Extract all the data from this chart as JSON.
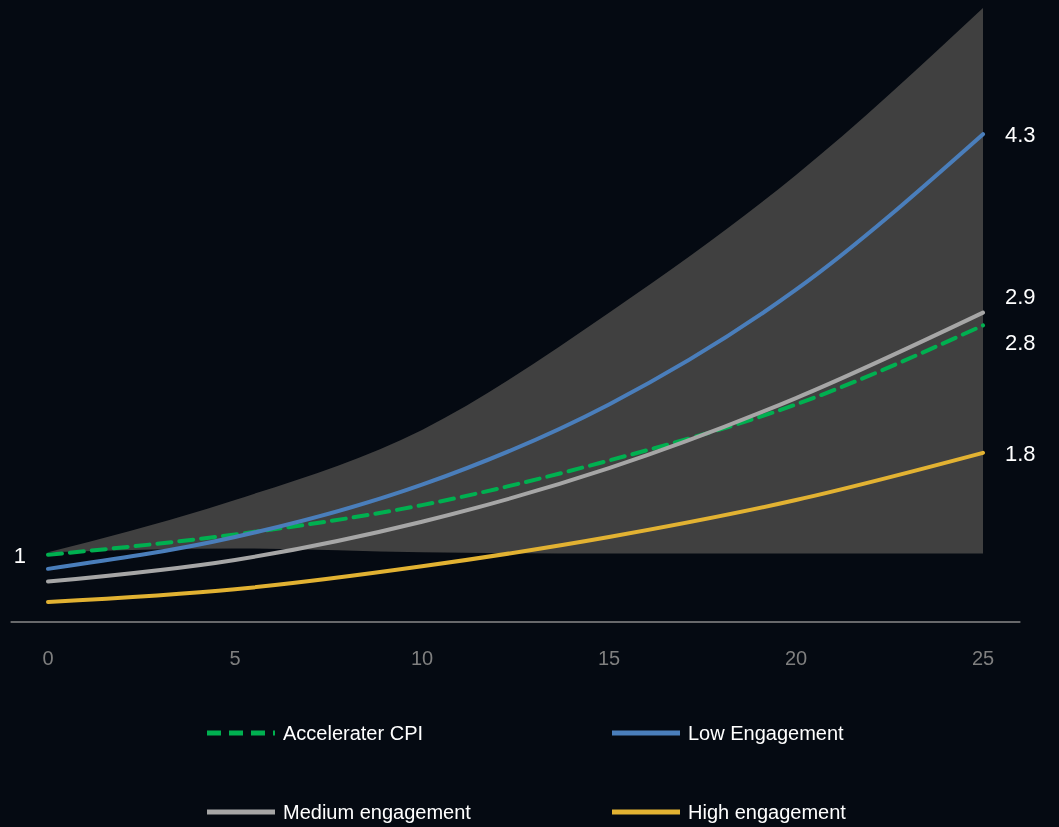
{
  "chart_data": {
    "type": "line",
    "x": [
      0,
      5,
      10,
      15,
      20,
      25
    ],
    "xlim": [
      -1,
      26
    ],
    "xticks": [
      0,
      5,
      10,
      15,
      20,
      25
    ],
    "tick_labels": "x",
    "legend": "bottom",
    "series": [
      {
        "name": "Accelerater CPI",
        "color": "#00b050",
        "line_style": "dashed",
        "values": [
          1,
          1.16,
          1.39,
          1.74,
          2.18,
          2.8
        ],
        "lower": [
          1.02,
          1.05,
          1.02,
          1.01,
          1.01,
          1.01
        ],
        "upper": [
          1.02,
          1.43,
          1.98,
          2.9,
          3.98,
          5.29
        ],
        "value_labels": [
          "1",
          null,
          null,
          null,
          null,
          "2.8"
        ]
      },
      {
        "name": "Low Engagement",
        "color": "#4a7ebb",
        "values": [
          0.89,
          1.14,
          1.55,
          2.18,
          3.08,
          4.3
        ],
        "value_labels": [
          null,
          null,
          null,
          null,
          null,
          "4.3"
        ]
      },
      {
        "name": "Medium engagement",
        "color": "#a6a6a6",
        "values": [
          0.79,
          0.96,
          1.26,
          1.68,
          2.23,
          2.9
        ],
        "value_labels": [
          null,
          null,
          null,
          null,
          null,
          "2.9"
        ]
      },
      {
        "name": "High engagement",
        "color": "#e2b232",
        "values": [
          0.63,
          0.73,
          0.91,
          1.14,
          1.43,
          1.8
        ],
        "value_labels": [
          null,
          null,
          null,
          null,
          null,
          "1.8"
        ]
      }
    ]
  }
}
